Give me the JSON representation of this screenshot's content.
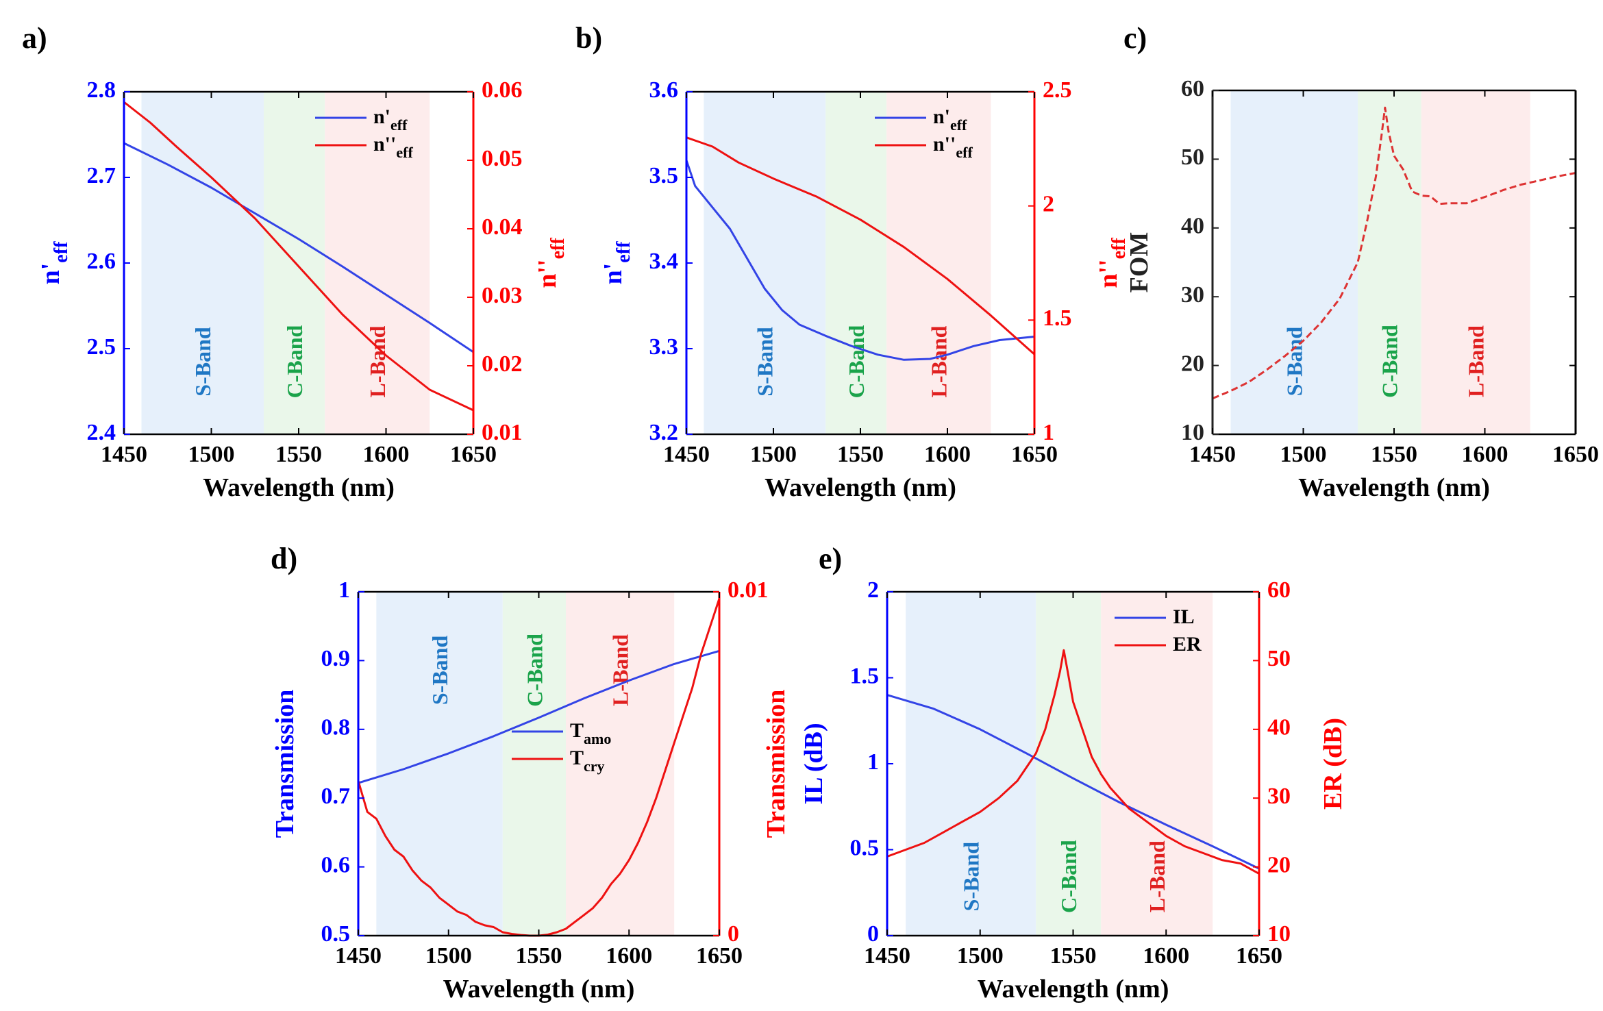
{
  "figure": {
    "bands": [
      {
        "label": "S-Band",
        "range": [
          1460,
          1530
        ],
        "fill": "#e6f0fb",
        "text_color": "#1f77c4"
      },
      {
        "label": "C-Band",
        "range": [
          1530,
          1565
        ],
        "fill": "#eaf7ea",
        "text_color": "#1aa34a"
      },
      {
        "label": "L-Band",
        "range": [
          1565,
          1625
        ],
        "fill": "#fdecec",
        "text_color": "#e02020"
      }
    ],
    "colors": {
      "left_axis": "#0000ff",
      "right_axis": "#ff0000",
      "neutral": "#222222",
      "series_blue": "#3344e6",
      "series_red": "#ee1111",
      "fom": "#dd3333"
    }
  },
  "chart_data": [
    {
      "panel_label": "a)",
      "type": "line",
      "xlabel": "Wavelength (nm)",
      "xlim": [
        1450,
        1650
      ],
      "xticks": [
        1450,
        1500,
        1550,
        1600,
        1650
      ],
      "ylabel_left": {
        "main": "n'",
        "sub": "eff"
      },
      "ylim_left": [
        2.4,
        2.8
      ],
      "yticks_left": [
        2.4,
        2.5,
        2.6,
        2.7,
        2.8
      ],
      "ylabel_right": {
        "main": "n''",
        "sub": "eff"
      },
      "ylim_right": [
        0.01,
        0.06
      ],
      "yticks_right": [
        0.01,
        0.02,
        0.03,
        0.04,
        0.05,
        0.06
      ],
      "legend": "top-right",
      "series": [
        {
          "legend_main": "n'",
          "legend_sub": "eff",
          "axis": "left",
          "color": "#3344e6",
          "x": [
            1450,
            1475,
            1500,
            1525,
            1550,
            1575,
            1600,
            1625,
            1650
          ],
          "y": [
            2.74,
            2.715,
            2.688,
            2.658,
            2.628,
            2.596,
            2.563,
            2.53,
            2.496
          ]
        },
        {
          "legend_main": "n''",
          "legend_sub": "eff",
          "axis": "right",
          "color": "#ee1111",
          "x": [
            1450,
            1465,
            1480,
            1500,
            1525,
            1550,
            1575,
            1600,
            1625,
            1650
          ],
          "y": [
            0.0585,
            0.0555,
            0.052,
            0.0475,
            0.0415,
            0.0345,
            0.0275,
            0.0215,
            0.0165,
            0.0135
          ]
        }
      ]
    },
    {
      "panel_label": "b)",
      "type": "line",
      "xlabel": "Wavelength (nm)",
      "xlim": [
        1450,
        1650
      ],
      "xticks": [
        1450,
        1500,
        1550,
        1600,
        1650
      ],
      "ylabel_left": {
        "main": "n'",
        "sub": "eff"
      },
      "ylim_left": [
        3.2,
        3.6
      ],
      "yticks_left": [
        3.2,
        3.3,
        3.4,
        3.5,
        3.6
      ],
      "ylabel_right": {
        "main": "n''",
        "sub": "eff"
      },
      "ylim_right": [
        1,
        2.5
      ],
      "yticks_right": [
        1,
        1.5,
        2,
        2.5
      ],
      "legend": "top-right",
      "series": [
        {
          "legend_main": "n'",
          "legend_sub": "eff",
          "axis": "left",
          "color": "#3344e6",
          "x": [
            1450,
            1455,
            1465,
            1475,
            1485,
            1495,
            1505,
            1515,
            1530,
            1545,
            1560,
            1575,
            1590,
            1600,
            1615,
            1630,
            1650
          ],
          "y": [
            3.52,
            3.49,
            3.465,
            3.44,
            3.405,
            3.37,
            3.345,
            3.328,
            3.315,
            3.303,
            3.293,
            3.287,
            3.288,
            3.293,
            3.303,
            3.31,
            3.314
          ]
        },
        {
          "legend_main": "n''",
          "legend_sub": "eff",
          "axis": "right",
          "color": "#ee1111",
          "x": [
            1450,
            1465,
            1480,
            1500,
            1525,
            1550,
            1575,
            1600,
            1625,
            1650
          ],
          "y": [
            2.3,
            2.26,
            2.19,
            2.12,
            2.04,
            1.94,
            1.82,
            1.68,
            1.52,
            1.35
          ]
        }
      ]
    },
    {
      "panel_label": "c)",
      "type": "line",
      "xlabel": "Wavelength (nm)",
      "xlim": [
        1450,
        1650
      ],
      "xticks": [
        1450,
        1500,
        1550,
        1600,
        1650
      ],
      "ylabel_left": {
        "main": "FOM",
        "sub": ""
      },
      "ylim_left": [
        10,
        60
      ],
      "yticks_left": [
        10,
        20,
        30,
        40,
        50,
        60
      ],
      "legend": "none",
      "series": [
        {
          "axis": "left",
          "color": "#dd3333",
          "dashed": true,
          "x": [
            1450,
            1460,
            1470,
            1480,
            1490,
            1500,
            1510,
            1520,
            1530,
            1535,
            1540,
            1543,
            1545,
            1547,
            1550,
            1555,
            1560,
            1565,
            1570,
            1575,
            1580,
            1590,
            1600,
            1610,
            1620,
            1630,
            1640,
            1650
          ],
          "y": [
            15.2,
            16.3,
            17.6,
            19.4,
            21.4,
            23.6,
            26.3,
            29.7,
            35,
            40.8,
            47.5,
            53.3,
            57.5,
            54,
            50.5,
            48.5,
            45.3,
            44.7,
            44.6,
            43.5,
            43.6,
            43.6,
            44.5,
            45.5,
            46.3,
            46.9,
            47.5,
            48
          ]
        }
      ]
    },
    {
      "panel_label": "d)",
      "type": "line",
      "xlabel": "Wavelength (nm)",
      "xlim": [
        1450,
        1650
      ],
      "xticks": [
        1450,
        1500,
        1550,
        1600,
        1650
      ],
      "ylabel_left": {
        "main": "Transmission",
        "sub": ""
      },
      "ylim_left": [
        0.5,
        1
      ],
      "yticks_left": [
        0.5,
        0.6,
        0.7,
        0.8,
        0.9,
        1
      ],
      "ylabel_right": {
        "main": "",
        "sub": ""
      },
      "ylim_right": [
        0,
        0.01
      ],
      "yticks_right": [
        0,
        0.01
      ],
      "legend": "middle-right",
      "series": [
        {
          "legend_main": "T",
          "legend_sub": "amo",
          "axis": "left",
          "color": "#3344e6",
          "x": [
            1450,
            1475,
            1500,
            1525,
            1550,
            1575,
            1600,
            1625,
            1650
          ],
          "y": [
            0.722,
            0.742,
            0.765,
            0.79,
            0.817,
            0.845,
            0.871,
            0.895,
            0.914
          ]
        },
        {
          "legend_main": "T",
          "legend_sub": "cry",
          "axis": "right",
          "color": "#ee1111",
          "x": [
            1450,
            1455,
            1460,
            1465,
            1470,
            1475,
            1480,
            1485,
            1490,
            1495,
            1500,
            1505,
            1510,
            1515,
            1520,
            1525,
            1530,
            1535,
            1540,
            1545,
            1550,
            1555,
            1560,
            1565,
            1570,
            1575,
            1580,
            1585,
            1590,
            1595,
            1600,
            1605,
            1610,
            1615,
            1620,
            1625,
            1630,
            1635,
            1640,
            1645,
            1650
          ],
          "y": [
            0.0045,
            0.0036,
            0.0034,
            0.0029,
            0.0025,
            0.0023,
            0.0019,
            0.0016,
            0.0014,
            0.0011,
            0.0009,
            0.0007,
            0.0006,
            0.0004,
            0.0003,
            0.00025,
            0.0001,
            5e-05,
            2e-05,
            0.0,
            0.0,
            3e-05,
            0.0001,
            0.0002,
            0.0004,
            0.0006,
            0.0008,
            0.0011,
            0.0015,
            0.0018,
            0.0022,
            0.0027,
            0.0033,
            0.004,
            0.0048,
            0.0056,
            0.0064,
            0.0072,
            0.0082,
            0.009,
            0.0098
          ]
        }
      ]
    },
    {
      "panel_label": "e)",
      "type": "line",
      "xlabel": "Wavelength (nm)",
      "xlim": [
        1450,
        1650
      ],
      "xticks": [
        1450,
        1500,
        1550,
        1600,
        1650
      ],
      "ylabel_left": {
        "main": "IL (dB)",
        "sub": ""
      },
      "ylim_left": [
        0,
        2
      ],
      "yticks_left": [
        0,
        0.5,
        1,
        1.5,
        2
      ],
      "ylabel_right": {
        "main": "ER (dB)",
        "sub": ""
      },
      "ylim_right": [
        10,
        60
      ],
      "yticks_right": [
        10,
        20,
        30,
        40,
        50,
        60
      ],
      "side_label": "Transmission",
      "legend": "top-right",
      "series": [
        {
          "legend_main": "IL",
          "legend_sub": "",
          "axis": "left",
          "color": "#3344e6",
          "x": [
            1450,
            1475,
            1500,
            1525,
            1550,
            1575,
            1600,
            1625,
            1650
          ],
          "y": [
            1.4,
            1.32,
            1.2,
            1.06,
            0.915,
            0.775,
            0.645,
            0.52,
            0.39
          ]
        },
        {
          "legend_main": "ER",
          "legend_sub": "",
          "axis": "right",
          "color": "#ee1111",
          "x": [
            1450,
            1460,
            1470,
            1480,
            1490,
            1500,
            1510,
            1520,
            1525,
            1530,
            1535,
            1540,
            1543,
            1545,
            1547,
            1550,
            1555,
            1560,
            1565,
            1570,
            1575,
            1580,
            1590,
            1600,
            1610,
            1620,
            1630,
            1640,
            1650
          ],
          "y": [
            21.5,
            22.5,
            23.5,
            25,
            26.5,
            28,
            30,
            32.5,
            34.5,
            36.5,
            40,
            45,
            48.5,
            51.5,
            48.5,
            44,
            40,
            36,
            33.5,
            31.5,
            30,
            28.5,
            26.5,
            24.5,
            23,
            22,
            21,
            20.5,
            19
          ]
        }
      ]
    }
  ]
}
